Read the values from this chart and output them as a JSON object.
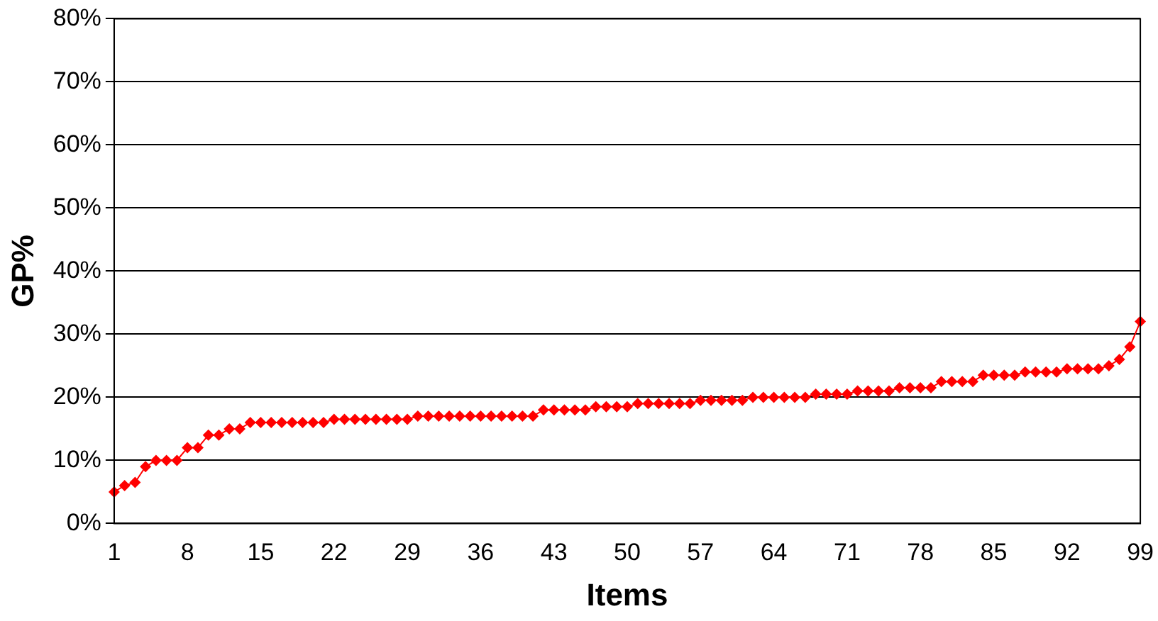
{
  "chart_data": {
    "type": "line",
    "xlabel": "Items",
    "ylabel": "GP%",
    "categories": [
      "1",
      null,
      null,
      null,
      null,
      null,
      null,
      "8",
      null,
      null,
      null,
      null,
      null,
      null,
      "15",
      null,
      null,
      null,
      null,
      null,
      null,
      "22",
      null,
      null,
      null,
      null,
      null,
      null,
      "29",
      null,
      null,
      null,
      null,
      null,
      null,
      "36",
      null,
      null,
      null,
      null,
      null,
      null,
      "43",
      null,
      null,
      null,
      null,
      null,
      null,
      "50",
      null,
      null,
      null,
      null,
      null,
      null,
      "57",
      null,
      null,
      null,
      null,
      null,
      null,
      "64",
      null,
      null,
      null,
      null,
      null,
      null,
      "71",
      null,
      null,
      null,
      null,
      null,
      null,
      "78",
      null,
      null,
      null,
      null,
      null,
      null,
      "85",
      null,
      null,
      null,
      null,
      null,
      null,
      "92",
      null,
      null,
      null,
      null,
      null,
      null,
      "99"
    ],
    "series": [
      {
        "color": "#ff0000",
        "values": [
          5,
          6,
          6.5,
          9,
          10,
          10,
          10,
          12,
          12,
          14,
          14,
          15,
          15,
          16,
          16,
          16,
          16,
          16,
          16,
          16,
          16,
          16.5,
          16.5,
          16.5,
          16.5,
          16.5,
          16.5,
          16.5,
          16.5,
          17,
          17,
          17,
          17,
          17,
          17,
          17,
          17,
          17,
          17,
          17,
          17,
          18,
          18,
          18,
          18,
          18,
          18.5,
          18.5,
          18.5,
          18.5,
          19,
          19,
          19,
          19,
          19,
          19,
          19.5,
          19.5,
          19.5,
          19.5,
          19.5,
          20,
          20,
          20,
          20,
          20,
          20,
          20.5,
          20.5,
          20.5,
          20.5,
          21,
          21,
          21,
          21,
          21.5,
          21.5,
          21.5,
          21.5,
          22.5,
          22.5,
          22.5,
          22.5,
          23.5,
          23.5,
          23.5,
          23.5,
          24,
          24,
          24,
          24,
          24.5,
          24.5,
          24.5,
          24.5,
          25,
          26,
          28,
          32
        ]
      }
    ],
    "ylim": [
      0,
      80
    ],
    "yticks": [
      {
        "value": 0,
        "label": "0%"
      },
      {
        "value": 10,
        "label": "10%"
      },
      {
        "value": 20,
        "label": "20%"
      },
      {
        "value": 30,
        "label": "30%"
      },
      {
        "value": 40,
        "label": "40%"
      },
      {
        "value": 50,
        "label": "50%"
      },
      {
        "value": 60,
        "label": "60%"
      },
      {
        "value": 70,
        "label": "70%"
      },
      {
        "value": 80,
        "label": "80%"
      }
    ],
    "grid": "y",
    "legend": false,
    "marker": "diamond",
    "line_style": "solid"
  }
}
